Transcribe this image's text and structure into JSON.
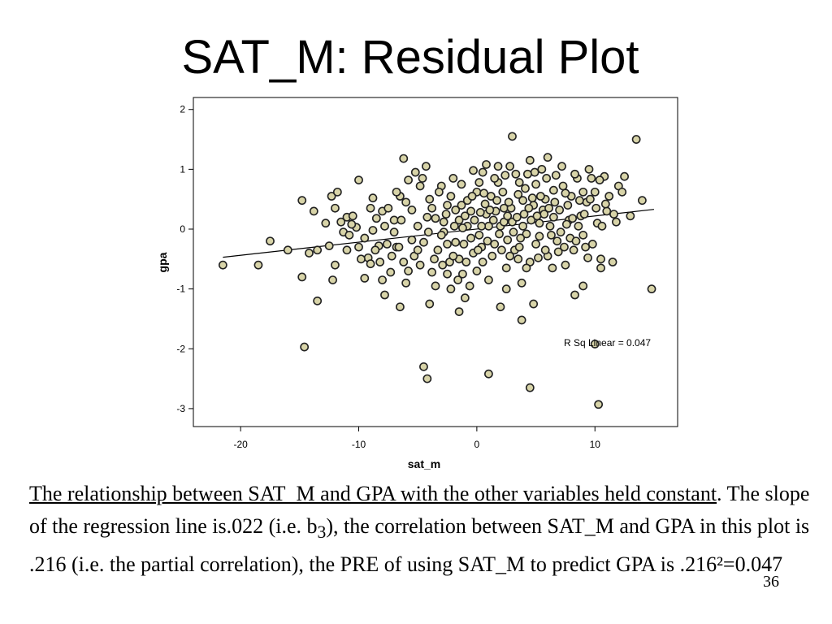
{
  "slide": {
    "title": "SAT_M:  Residual Plot",
    "number": "36"
  },
  "caption": {
    "underlined": "The relationship between SAT_M and GPA with the other variables held constant",
    "part1": ".  The slope of the regression line is.022 (i.e. b",
    "subscript": "3",
    "part2": "), the correlation between SAT_M and GPA in this plot is .216 (i.e. the partial correlation), the PRE of using SAT_M to predict GPA is .216²=0.047"
  },
  "chart_data": {
    "type": "scatter",
    "xlabel": "sat_m",
    "ylabel": "gpa",
    "xlim": [
      -24,
      17
    ],
    "ylim": [
      -3.3,
      2.2
    ],
    "xticks": [
      -20,
      -10,
      0,
      10
    ],
    "xtick_labels": [
      "-20",
      "-10",
      "0",
      "10"
    ],
    "yticks": [
      -3,
      -2,
      -1,
      0,
      1,
      2
    ],
    "ytick_labels": [
      "-3",
      "-2",
      "-1",
      "0",
      "1",
      "2"
    ],
    "grid": false,
    "point_color": "#d8d4a8",
    "point_edge": "#222222",
    "fit_line": {
      "x": [
        -21.5,
        15
      ],
      "y": [
        -0.47,
        0.33
      ],
      "label": "R Sq Linear = 0.047"
    },
    "points": [
      [
        -21.5,
        -0.6
      ],
      [
        -18.5,
        -0.6
      ],
      [
        -17.5,
        -0.2
      ],
      [
        -16,
        -0.35
      ],
      [
        -14.8,
        0.48
      ],
      [
        -14.2,
        -0.4
      ],
      [
        -13.5,
        -0.35
      ],
      [
        -13.8,
        0.3
      ],
      [
        -14.8,
        -0.8
      ],
      [
        -13.5,
        -1.2
      ],
      [
        -14.6,
        -1.97
      ],
      [
        -12.5,
        -0.28
      ],
      [
        -12,
        0.35
      ],
      [
        -12.3,
        0.55
      ],
      [
        -11.8,
        0.62
      ],
      [
        -12,
        -0.6
      ],
      [
        -12.2,
        -0.85
      ],
      [
        -11.5,
        0.12
      ],
      [
        -11,
        0.2
      ],
      [
        -11.3,
        -0.05
      ],
      [
        -10.5,
        0.22
      ],
      [
        -10.8,
        -0.1
      ],
      [
        -10,
        0.82
      ],
      [
        -10.2,
        0.03
      ],
      [
        -10,
        -0.3
      ],
      [
        -9.5,
        -0.15
      ],
      [
        -9.2,
        -0.48
      ],
      [
        -9,
        -0.58
      ],
      [
        -9.5,
        -0.82
      ],
      [
        -8.8,
        0.52
      ],
      [
        -8.5,
        0.18
      ],
      [
        -8.8,
        -0.02
      ],
      [
        -8.3,
        -0.28
      ],
      [
        -8,
        0.3
      ],
      [
        -8.2,
        -0.55
      ],
      [
        -7.8,
        -1.1
      ],
      [
        -7.5,
        0.35
      ],
      [
        -7.3,
        -0.72
      ],
      [
        -7,
        0.15
      ],
      [
        -6.8,
        -0.3
      ],
      [
        -6.5,
        0.55
      ],
      [
        -6.2,
        -0.55
      ],
      [
        -6,
        -0.9
      ],
      [
        -6.2,
        1.18
      ],
      [
        -6.5,
        -1.3
      ],
      [
        -5.8,
        0.82
      ],
      [
        -5.5,
        0.32
      ],
      [
        -5.3,
        -0.45
      ],
      [
        -5,
        0.05
      ],
      [
        -4.8,
        0.72
      ],
      [
        -4.5,
        -0.22
      ],
      [
        -4.3,
        1.05
      ],
      [
        -4,
        0.5
      ],
      [
        -3.8,
        -0.72
      ],
      [
        -3.5,
        0.18
      ],
      [
        -3.3,
        -0.35
      ],
      [
        -4,
        -1.25
      ],
      [
        -3,
        0.72
      ],
      [
        -2.8,
        -0.05
      ],
      [
        -2.5,
        0.4
      ],
      [
        -2.3,
        -0.55
      ],
      [
        -2,
        0.85
      ],
      [
        -2.2,
        -1.0
      ],
      [
        -1.8,
        -0.22
      ],
      [
        -1.5,
        0.15
      ],
      [
        -1.3,
        0.75
      ],
      [
        -1.2,
        -0.75
      ],
      [
        -1,
        -1.15
      ],
      [
        -0.8,
        0.05
      ],
      [
        -0.5,
        0.3
      ],
      [
        -0.3,
        -0.4
      ],
      [
        0,
        0.62
      ],
      [
        0.2,
        -0.1
      ],
      [
        0.5,
        0.95
      ],
      [
        0.5,
        -0.55
      ],
      [
        0.8,
        0.25
      ],
      [
        1,
        -0.85
      ],
      [
        1.2,
        0.55
      ],
      [
        1.5,
        -0.25
      ],
      [
        1.8,
        0.78
      ],
      [
        2,
        0.05
      ],
      [
        2,
        -1.3
      ],
      [
        2.3,
        0.35
      ],
      [
        2.5,
        -0.65
      ],
      [
        2.8,
        1.05
      ],
      [
        3,
        0.12
      ],
      [
        3,
        1.55
      ],
      [
        3.2,
        -0.35
      ],
      [
        3.5,
        0.58
      ],
      [
        3.8,
        -0.9
      ],
      [
        4,
        0.25
      ],
      [
        4.2,
        -0.08
      ],
      [
        4.5,
        1.15
      ],
      [
        4.5,
        -0.55
      ],
      [
        4.8,
        0.4
      ],
      [
        5,
        0.75
      ],
      [
        5,
        -0.25
      ],
      [
        5.3,
        0.1
      ],
      [
        5.5,
        1.0
      ],
      [
        5.8,
        0.5
      ],
      [
        6,
        -0.45
      ],
      [
        6,
        1.2
      ],
      [
        6.2,
        0.05
      ],
      [
        6.5,
        0.65
      ],
      [
        6.8,
        -0.2
      ],
      [
        7,
        0.32
      ],
      [
        7.2,
        1.05
      ],
      [
        7.5,
        -0.6
      ],
      [
        7.8,
        0.15
      ],
      [
        8,
        0.55
      ],
      [
        8.2,
        -0.35
      ],
      [
        8.5,
        0.85
      ],
      [
        8.8,
        0.22
      ],
      [
        9,
        -0.1
      ],
      [
        9.3,
        0.45
      ],
      [
        9.5,
        1.0
      ],
      [
        9.8,
        -0.25
      ],
      [
        10,
        0.62
      ],
      [
        10.2,
        0.1
      ],
      [
        10.5,
        -0.5
      ],
      [
        10.8,
        0.88
      ],
      [
        11,
        0.3
      ],
      [
        11.5,
        -0.55
      ],
      [
        12,
        0.72
      ],
      [
        12.5,
        0.88
      ],
      [
        13,
        0.22
      ],
      [
        13.5,
        1.5
      ],
      [
        14,
        0.48
      ],
      [
        14.8,
        -1.0
      ],
      [
        9,
        -0.95
      ],
      [
        10.5,
        -0.65
      ],
      [
        8.3,
        -1.1
      ],
      [
        4.8,
        -1.25
      ],
      [
        3.8,
        -1.52
      ],
      [
        2.5,
        -1.0
      ],
      [
        -1.5,
        -1.38
      ],
      [
        -2.5,
        -0.25
      ],
      [
        -4.5,
        -2.3
      ],
      [
        -4.2,
        -2.5
      ],
      [
        1,
        -2.42
      ],
      [
        4.5,
        -2.65
      ],
      [
        10.3,
        -2.93
      ],
      [
        10,
        -1.92
      ],
      [
        -9.8,
        -0.5
      ],
      [
        -9,
        0.35
      ],
      [
        -8,
        -0.85
      ],
      [
        -7,
        -0.05
      ],
      [
        -6.8,
        0.62
      ],
      [
        -5.5,
        -0.18
      ],
      [
        -5.2,
        0.95
      ],
      [
        -4.8,
        -0.6
      ],
      [
        -3.8,
        0.35
      ],
      [
        -3.5,
        -0.95
      ],
      [
        -3.2,
        0.62
      ],
      [
        -2.8,
        0.12
      ],
      [
        -2.5,
        -0.75
      ],
      [
        -2.2,
        0.55
      ],
      [
        -1.8,
        0.32
      ],
      [
        -1.5,
        -0.5
      ],
      [
        -1.2,
        0.02
      ],
      [
        -0.8,
        0.48
      ],
      [
        -0.6,
        -0.95
      ],
      [
        -0.2,
        0.15
      ],
      [
        0.2,
        0.78
      ],
      [
        0.4,
        -0.3
      ],
      [
        0.7,
        0.42
      ],
      [
        1,
        0.05
      ],
      [
        1.3,
        -0.45
      ],
      [
        1.6,
        0.3
      ],
      [
        1.9,
        -0.08
      ],
      [
        2.2,
        0.62
      ],
      [
        2.6,
        -0.18
      ],
      [
        2.9,
        0.35
      ],
      [
        3.3,
        0.92
      ],
      [
        3.6,
        -0.3
      ],
      [
        3.9,
        0.48
      ],
      [
        4.2,
        -0.65
      ],
      [
        4.6,
        0.15
      ],
      [
        4.9,
        0.95
      ],
      [
        5.2,
        -0.48
      ],
      [
        5.6,
        0.32
      ],
      [
        5.9,
        0.85
      ],
      [
        6.3,
        -0.1
      ],
      [
        6.6,
        0.45
      ],
      [
        6.9,
        -0.38
      ],
      [
        7.3,
        0.72
      ],
      [
        7.6,
        0.08
      ],
      [
        7.9,
        -0.15
      ],
      [
        8.3,
        0.92
      ],
      [
        8.6,
        0.05
      ],
      [
        9,
        0.62
      ],
      [
        9.4,
        -0.48
      ],
      [
        9.7,
        0.85
      ],
      [
        10.1,
        0.35
      ],
      [
        10.4,
        0.82
      ],
      [
        11.2,
        0.55
      ],
      [
        11.8,
        0.12
      ],
      [
        12.3,
        0.62
      ],
      [
        -0.3,
        0.98
      ],
      [
        0.8,
        1.08
      ],
      [
        1.8,
        1.05
      ],
      [
        2.4,
        0.9
      ],
      [
        3.6,
        0.78
      ],
      [
        -1,
        0.22
      ],
      [
        -0.5,
        -0.15
      ],
      [
        0.3,
        0.28
      ],
      [
        1.4,
        0.15
      ],
      [
        2.1,
        -0.35
      ],
      [
        3.1,
        -0.05
      ],
      [
        4.1,
        0.68
      ],
      [
        5.4,
        0.55
      ],
      [
        6.4,
        -0.65
      ],
      [
        -6,
        0.45
      ],
      [
        -5,
        -0.35
      ],
      [
        -4.2,
        0.2
      ],
      [
        -3,
        -0.1
      ],
      [
        -2,
        -0.45
      ],
      [
        -1.3,
        0.4
      ],
      [
        0,
        -0.7
      ],
      [
        0.9,
        -0.2
      ],
      [
        2.7,
        0.45
      ],
      [
        3.4,
        0.2
      ],
      [
        4.4,
        0.35
      ],
      [
        5.7,
        0.25
      ],
      [
        6.7,
        0.9
      ],
      [
        7.7,
        0.4
      ],
      [
        8.7,
        0.48
      ],
      [
        -11,
        -0.35
      ],
      [
        -12.8,
        0.1
      ],
      [
        -10.6,
        0.08
      ],
      [
        -7.8,
        0.05
      ],
      [
        -7.2,
        -0.45
      ],
      [
        -6.4,
        0.15
      ],
      [
        -1.6,
        -0.85
      ],
      [
        -0.9,
        -0.55
      ],
      [
        0.6,
        0.6
      ],
      [
        1.7,
        0.48
      ],
      [
        2.8,
        -0.45
      ],
      [
        3.7,
        -0.15
      ],
      [
        4.7,
        0.52
      ],
      [
        5.1,
        0.22
      ],
      [
        6.1,
        0.35
      ],
      [
        7.1,
        -0.05
      ],
      [
        8.1,
        0.18
      ],
      [
        9.1,
        0.25
      ],
      [
        10.6,
        0.05
      ],
      [
        -8.6,
        -0.35
      ],
      [
        -5.8,
        -0.7
      ],
      [
        -4.6,
        0.85
      ],
      [
        -3.6,
        -0.5
      ],
      [
        -2.6,
        0.25
      ],
      [
        -1.9,
        0.05
      ],
      [
        -0.4,
        0.55
      ],
      [
        0.1,
        -0.35
      ],
      [
        1.1,
        0.32
      ],
      [
        2.3,
        0.12
      ],
      [
        3.5,
        -0.5
      ],
      [
        4.3,
        0.92
      ],
      [
        5.3,
        -0.12
      ],
      [
        6.5,
        0.2
      ],
      [
        7.4,
        -0.3
      ],
      [
        8.4,
        -0.2
      ],
      [
        9.6,
        0.5
      ],
      [
        10.9,
        0.42
      ],
      [
        11.6,
        0.25
      ],
      [
        -7.6,
        -0.25
      ],
      [
        -6.6,
        -0.3
      ],
      [
        -4.1,
        -0.05
      ],
      [
        -2.9,
        -0.6
      ],
      [
        -1.1,
        -0.25
      ],
      [
        0.4,
        0.05
      ],
      [
        1.5,
        0.85
      ],
      [
        2.6,
        0.22
      ],
      [
        3.9,
        0.05
      ],
      [
        5.8,
        -0.35
      ],
      [
        7.5,
        0.6
      ],
      [
        9.2,
        -0.3
      ]
    ]
  }
}
